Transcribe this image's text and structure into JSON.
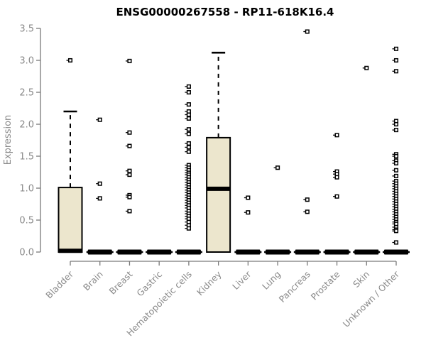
{
  "page": {
    "background": "#ffffff"
  },
  "chart_data": {
    "type": "boxplot",
    "title": "ENSG00000267558 - RP11-618K16.4",
    "ylabel": "Expression",
    "ylim": [
      0,
      3.5
    ],
    "ytick_labels": [
      "0.0",
      "0.5",
      "1.0",
      "1.5",
      "2.0",
      "2.5",
      "3.0",
      "3.5"
    ],
    "grid": false,
    "legend": "none",
    "categories": [
      "Bladder",
      "Brain",
      "Breast",
      "Gastric",
      "Hematopoietic cells",
      "Kidney",
      "Liver",
      "Lung",
      "Pancreas",
      "Prostate",
      "Skin",
      "Unknown / Other"
    ],
    "colors": {
      "box_fill": "#ece6cd",
      "box_stroke": "#000000",
      "median": "#000000",
      "outlier": "#000000",
      "axis_line": "#7a7a7a",
      "tick_text": "#8a8a8a",
      "title_text": "#000000",
      "background": "#ffffff"
    },
    "series": [
      {
        "category": "Bladder",
        "q1": 0,
        "median": 0.02,
        "q3": 1.01,
        "whisker_low": 0,
        "whisker_high": 2.2,
        "outliers": [
          3.0
        ]
      },
      {
        "category": "Brain",
        "q1": 0,
        "median": 0,
        "q3": 0,
        "whisker_low": 0,
        "whisker_high": 0,
        "outliers": [
          2.07,
          1.07,
          0.84
        ]
      },
      {
        "category": "Breast",
        "q1": 0,
        "median": 0,
        "q3": 0,
        "whisker_low": 0,
        "whisker_high": 0,
        "outliers": [
          2.99,
          1.87,
          1.66,
          1.27,
          1.21,
          0.89,
          0.86,
          0.64
        ]
      },
      {
        "category": "Gastric",
        "q1": 0,
        "median": 0,
        "q3": 0,
        "whisker_low": 0,
        "whisker_high": 0,
        "outliers": []
      },
      {
        "category": "Hematopoietic cells",
        "q1": 0,
        "median": 0,
        "q3": 0,
        "whisker_low": 0,
        "whisker_high": 0,
        "outliers": [
          2.59,
          2.5,
          2.31,
          2.2,
          2.15,
          2.09,
          1.92,
          1.85,
          1.7,
          1.64,
          1.57,
          1.36,
          1.32,
          1.28,
          1.24,
          1.21,
          1.17,
          1.13,
          1.09,
          1.05,
          1.01,
          0.97,
          0.93,
          0.89,
          0.85,
          0.81,
          0.77,
          0.73,
          0.69,
          0.64,
          0.6,
          0.56,
          0.52,
          0.47,
          0.42,
          0.37
        ]
      },
      {
        "category": "Kidney",
        "q1": 0,
        "median": 0.99,
        "q3": 1.79,
        "whisker_low": 0,
        "whisker_high": 3.12,
        "outliers": []
      },
      {
        "category": "Liver",
        "q1": 0,
        "median": 0,
        "q3": 0,
        "whisker_low": 0,
        "whisker_high": 0,
        "outliers": [
          0.85,
          0.62
        ]
      },
      {
        "category": "Lung",
        "q1": 0,
        "median": 0,
        "q3": 0,
        "whisker_low": 0,
        "whisker_high": 0,
        "outliers": [
          1.32
        ]
      },
      {
        "category": "Pancreas",
        "q1": 0,
        "median": 0,
        "q3": 0,
        "whisker_low": 0,
        "whisker_high": 0,
        "outliers": [
          3.45,
          0.82,
          0.63
        ]
      },
      {
        "category": "Prostate",
        "q1": 0,
        "median": 0,
        "q3": 0,
        "whisker_low": 0,
        "whisker_high": 0,
        "outliers": [
          1.83,
          1.26,
          1.22,
          1.17,
          0.87
        ]
      },
      {
        "category": "Skin",
        "q1": 0,
        "median": 0,
        "q3": 0,
        "whisker_low": 0,
        "whisker_high": 0,
        "outliers": [
          2.88
        ]
      },
      {
        "category": "Unknown / Other",
        "q1": 0,
        "median": 0,
        "q3": 0,
        "whisker_low": 0,
        "whisker_high": 0,
        "outliers": [
          3.18,
          3.0,
          2.83,
          2.05,
          2.0,
          1.91,
          1.53,
          1.5,
          1.43,
          1.39,
          1.28,
          1.19,
          1.11,
          1.07,
          1.03,
          0.99,
          0.95,
          0.91,
          0.87,
          0.83,
          0.79,
          0.75,
          0.71,
          0.67,
          0.63,
          0.59,
          0.55,
          0.51,
          0.47,
          0.44,
          0.39,
          0.35,
          0.33,
          0.15
        ]
      }
    ]
  }
}
